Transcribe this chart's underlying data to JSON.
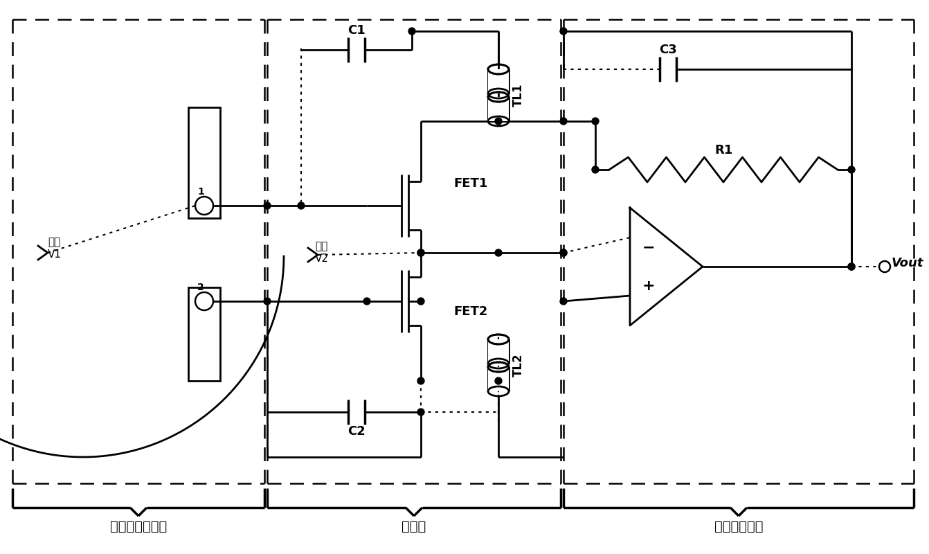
{
  "bg_color": "#ffffff",
  "labels": {
    "bias_v1_1": "偏压",
    "bias_v1_2": "V1",
    "bias_v2_1": "偏压",
    "bias_v2_2": "V2",
    "ant1": "1",
    "ant2": "2",
    "fet1": "FET1",
    "fet2": "FET2",
    "c1": "C1",
    "c2": "C2",
    "c3": "C3",
    "r1": "R1",
    "tl1": "TL1",
    "tl2": "TL2",
    "vout": "Vout",
    "sec1": "半圆形贴片天线",
    "sec2": "探测器",
    "sec3": "低噪声放大器"
  }
}
